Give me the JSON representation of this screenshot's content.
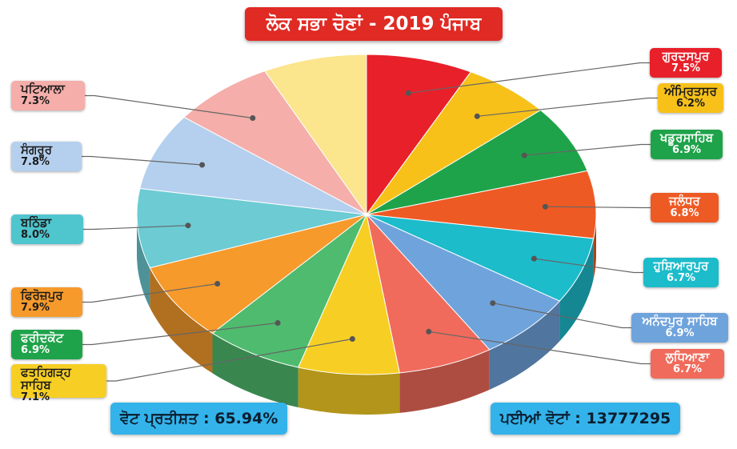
{
  "chart_title": "ਲੋਕ ਸਭਾ ਚੋਣਾਂ - 2019 ਪੰਜਾਬ",
  "chart_data": {
    "type": "pie",
    "title": "ਲੋਕ ਸਭਾ ਚੋਣਾਂ - 2019 ਪੰਜਾਬ",
    "unit": "%",
    "slices": [
      {
        "name": "ਗੁਰਦਸਪੁਰ",
        "label": "7.5%",
        "value": 7.5,
        "color": "#e8202a"
      },
      {
        "name": "ਅੰਮ੍ਰਿਤਸਰ",
        "label": "6.2%",
        "value": 6.2,
        "color": "#f7c11a"
      },
      {
        "name": "ਖਡੂਰਸਾਹਿਬ",
        "label": "6.9%",
        "value": 6.9,
        "color": "#1fa34a"
      },
      {
        "name": "ਜਲੰਧਰ",
        "label": "6.8%",
        "value": 6.8,
        "color": "#ee5a24"
      },
      {
        "name": "ਹੁਸ਼ਿਆਰਪੁਰ",
        "label": "6.7%",
        "value": 6.7,
        "color": "#1cbccb"
      },
      {
        "name": "ਅਨੰਦਪੁਰ ਸਾਹਿਬ",
        "label": "6.9%",
        "value": 6.9,
        "color": "#6fa3dc"
      },
      {
        "name": "ਲੁਧਿਆਣਾ",
        "label": "6.7%",
        "value": 6.7,
        "color": "#f06b5b"
      },
      {
        "name": "ਫਤਹਿਗੜ੍ਹ ਸਾਹਿਬ",
        "label": "7.1%",
        "value": 7.1,
        "color": "#f7cf24"
      },
      {
        "name": "ਫਰੀਦਕੋਟ",
        "label": "6.9%",
        "value": 6.9,
        "color": "#4fbb6e"
      },
      {
        "name": "ਫਿਰੋਜ਼ਪੁਰ",
        "label": "7.9%",
        "value": 7.9,
        "color": "#f69a2c"
      },
      {
        "name": "ਬਠਿੰਡਾ",
        "label": "8.0%",
        "value": 8.0,
        "color": "#6ccbd3"
      },
      {
        "name": "ਸੰਗਰੂਰ",
        "label": "7.8%",
        "value": 7.8,
        "color": "#b5d0ee"
      },
      {
        "name": "ਪਟਿਆਲਾ",
        "label": "7.3%",
        "value": 7.3,
        "color": "#f5aeaa"
      },
      {
        "name": "",
        "label": "",
        "value": 7.3,
        "color": "#fbe58d"
      }
    ]
  },
  "stats": {
    "vote_percent": "ਵੋਟ ਪ੍ਰਤੀਸ਼ਤ : 65.94%",
    "total_votes": "ਪਈਆਂ ਵੋਟਾਂ : 13777295"
  }
}
